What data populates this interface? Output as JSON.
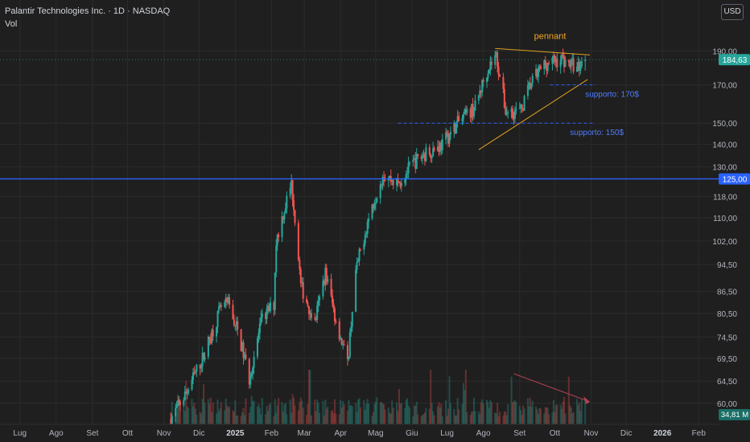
{
  "header": {
    "symbol_line": "Palantir Technologies Inc. · 1D · NASDAQ",
    "vol_label": "Vol",
    "currency_button": "USD"
  },
  "colors": {
    "background": "#1f1f1f",
    "grid": "#2b2b2b",
    "up": "#26a69a",
    "down": "#ef5350",
    "horizontal_line": "#2962ff",
    "support": "#2962ff",
    "trendline": "#e0a020",
    "arrow": "#b04050"
  },
  "chart_data": {
    "type": "candlestick",
    "title": "Palantir Technologies Inc. · 1D · NASDAQ",
    "y_scale": "log",
    "ylim": [
      56,
      202
    ],
    "grid": true,
    "y_ticks": [
      "190,00",
      "170,00",
      "150,00",
      "140,00",
      "130,00",
      "118,00",
      "110,00",
      "102,00",
      "94,50",
      "86,50",
      "80,50",
      "74,50",
      "69,50",
      "64,50",
      "60,00"
    ],
    "x_ticks": [
      "Lug",
      "Ago",
      "Set",
      "Ott",
      "Nov",
      "Dic",
      "2025",
      "Feb",
      "Mar",
      "Apr",
      "Mag",
      "Giu",
      "Lug",
      "Ago",
      "Set",
      "Ott",
      "Nov",
      "Dic",
      "2026",
      "Feb"
    ],
    "price_path": [
      {
        "date": "2024-11-07",
        "close": 57
      },
      {
        "date": "2024-11-20",
        "close": 62
      },
      {
        "date": "2024-12-05",
        "close": 70
      },
      {
        "date": "2024-12-20",
        "close": 82
      },
      {
        "date": "2024-12-26",
        "close": 83
      },
      {
        "date": "2025-01-03",
        "close": 76
      },
      {
        "date": "2025-01-13",
        "close": 65
      },
      {
        "date": "2025-01-24",
        "close": 79
      },
      {
        "date": "2025-02-03",
        "close": 83
      },
      {
        "date": "2025-02-05",
        "close": 102
      },
      {
        "date": "2025-02-18",
        "close": 123
      },
      {
        "date": "2025-02-26",
        "close": 88
      },
      {
        "date": "2025-03-10",
        "close": 78
      },
      {
        "date": "2025-03-19",
        "close": 92
      },
      {
        "date": "2025-03-27",
        "close": 80
      },
      {
        "date": "2025-04-07",
        "close": 68
      },
      {
        "date": "2025-04-14",
        "close": 92
      },
      {
        "date": "2025-04-25",
        "close": 110
      },
      {
        "date": "2025-05-07",
        "close": 127
      },
      {
        "date": "2025-05-20",
        "close": 123
      },
      {
        "date": "2025-06-03",
        "close": 132
      },
      {
        "date": "2025-06-13",
        "close": 136
      },
      {
        "date": "2025-06-27",
        "close": 140
      },
      {
        "date": "2025-07-10",
        "close": 150
      },
      {
        "date": "2025-07-25",
        "close": 158
      },
      {
        "date": "2025-08-05",
        "close": 180
      },
      {
        "date": "2025-08-12",
        "close": 187
      },
      {
        "date": "2025-08-20",
        "close": 156
      },
      {
        "date": "2025-09-02",
        "close": 156
      },
      {
        "date": "2025-09-10",
        "close": 170
      },
      {
        "date": "2025-09-22",
        "close": 182
      },
      {
        "date": "2025-10-07",
        "close": 185
      },
      {
        "date": "2025-10-20",
        "close": 180
      },
      {
        "date": "2025-10-27",
        "close": 184.63
      }
    ],
    "last_price_label": "184,63",
    "horizontal_line": {
      "value": 125,
      "label": "125,00"
    },
    "annotations": [
      {
        "type": "text",
        "text": "pennant"
      },
      {
        "type": "support",
        "text": "supporto: 170$",
        "value": 170
      },
      {
        "type": "support",
        "text": "supporto: 150$",
        "value": 150
      }
    ],
    "volume": {
      "last_label": "34,81 M"
    }
  }
}
